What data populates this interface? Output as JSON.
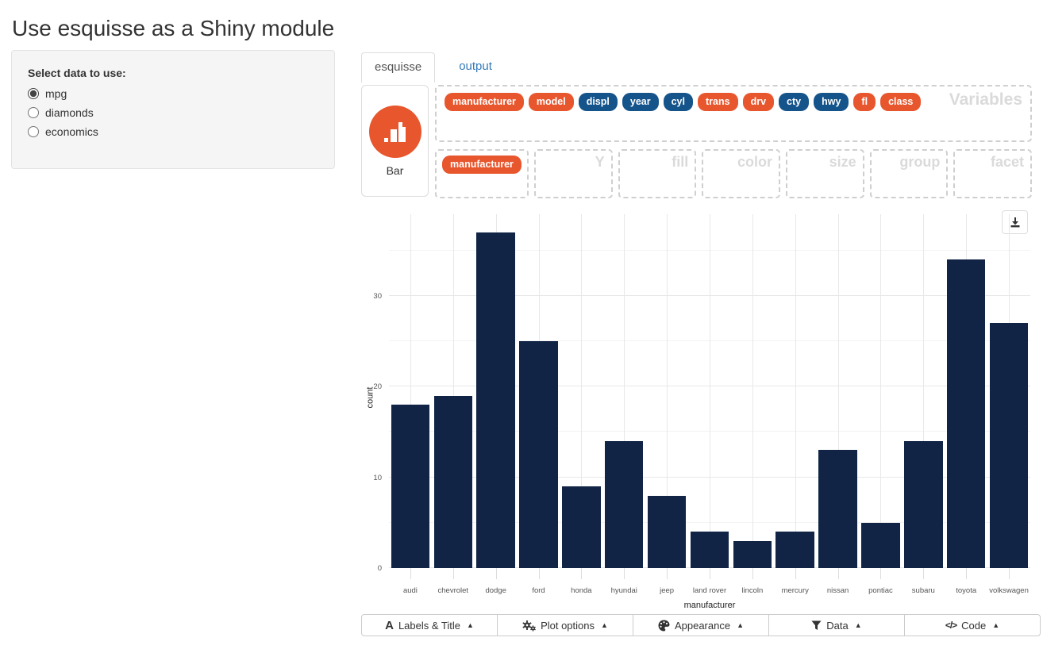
{
  "page": {
    "title": "Use esquisse as a Shiny module"
  },
  "colors": {
    "pill_discrete": "#e8562d",
    "pill_continuous": "#15548b",
    "geom_icon_bg": "#e8562d",
    "bar_fill": "#112446",
    "tab_link": "#337ab7"
  },
  "data_selector": {
    "label": "Select data to use:",
    "options": [
      {
        "label": "mpg",
        "selected": true
      },
      {
        "label": "diamonds",
        "selected": false
      },
      {
        "label": "economics",
        "selected": false
      }
    ]
  },
  "tabs": [
    {
      "label": "esquisse",
      "active": true
    },
    {
      "label": "output",
      "active": false
    }
  ],
  "esquisse": {
    "geom_label": "Bar",
    "variables_zone": {
      "watermark": "Variables",
      "pills": [
        {
          "label": "manufacturer",
          "type": "discrete"
        },
        {
          "label": "model",
          "type": "discrete"
        },
        {
          "label": "displ",
          "type": "continuous"
        },
        {
          "label": "year",
          "type": "continuous"
        },
        {
          "label": "cyl",
          "type": "continuous"
        },
        {
          "label": "trans",
          "type": "discrete"
        },
        {
          "label": "drv",
          "type": "discrete"
        },
        {
          "label": "cty",
          "type": "continuous"
        },
        {
          "label": "hwy",
          "type": "continuous"
        },
        {
          "label": "fl",
          "type": "discrete"
        },
        {
          "label": "class",
          "type": "discrete"
        }
      ]
    },
    "aes_zones": [
      {
        "name": "x",
        "watermark": "",
        "pills": [
          {
            "label": "manufacturer",
            "type": "discrete"
          }
        ]
      },
      {
        "name": "y",
        "watermark": "Y",
        "pills": []
      },
      {
        "name": "fill",
        "watermark": "fill",
        "pills": []
      },
      {
        "name": "color",
        "watermark": "color",
        "pills": []
      },
      {
        "name": "size",
        "watermark": "size",
        "pills": []
      },
      {
        "name": "group",
        "watermark": "group",
        "pills": []
      },
      {
        "name": "facet",
        "watermark": "facet",
        "pills": []
      }
    ]
  },
  "chart_data": {
    "type": "bar",
    "title": "",
    "categories": [
      "audi",
      "chevrolet",
      "dodge",
      "ford",
      "honda",
      "hyundai",
      "jeep",
      "land rover",
      "lincoln",
      "mercury",
      "nissan",
      "pontiac",
      "subaru",
      "toyota",
      "volkswagen"
    ],
    "values": [
      18,
      19,
      37,
      25,
      9,
      14,
      8,
      4,
      3,
      4,
      13,
      5,
      14,
      34,
      27
    ],
    "xlabel": "manufacturer",
    "ylabel": "count",
    "ylim": [
      0,
      39
    ],
    "yticks_major": [
      0,
      10,
      20,
      30
    ],
    "yticks_minor": [
      5,
      15,
      25,
      35
    ],
    "grid": true,
    "legend_position": "none",
    "bar_color": "#112446"
  },
  "controls": {
    "caret": "▲",
    "buttons": [
      {
        "icon": "text-icon",
        "label": "Labels & Title"
      },
      {
        "icon": "gears-icon",
        "label": "Plot options"
      },
      {
        "icon": "palette-icon",
        "label": "Appearance"
      },
      {
        "icon": "filter-icon",
        "label": "Data"
      },
      {
        "icon": "code-icon",
        "label": "Code"
      }
    ]
  }
}
